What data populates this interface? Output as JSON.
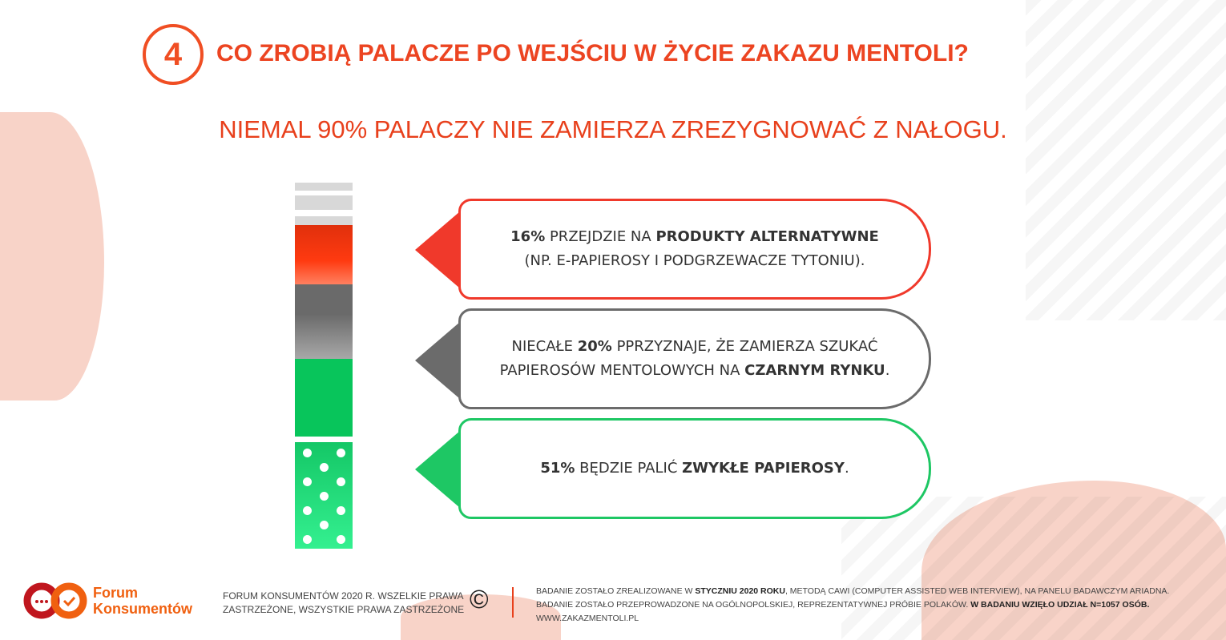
{
  "header": {
    "number": "4",
    "title": "CO ZROBIĄ PALACZE PO WEJŚCIU W ŻYCIE ZAKAZU MENTOLI?",
    "subtitle": "NIEMAL 90% PALACZY NIE ZAMIERZA ZREZYGNOWAĆ Z NAŁOGU."
  },
  "colors": {
    "accent": "#ec4421",
    "alternative": "#f0392b",
    "black_market": "#6b6b6b",
    "regular": "#1ec764"
  },
  "items": [
    {
      "b1": "16%",
      "t1": " PRZEJDZIE NA ",
      "b2": "PRODUKTY ALTERNATYWNE",
      "t2": "(NP. E-PAPIEROSY I PODGRZEWACZE TYTONIU).",
      "percent": 16
    },
    {
      "t0": "NIECAŁE ",
      "b1": "20%",
      "t1": " PPRZYZNAJE, ŻE ZAMIERZA SZUKAĆ",
      "t2": "PAPIEROSÓW MENTOLOWYCH NA ",
      "b2": "CZARNYM RYNKU",
      "t3": ".",
      "percent": 20
    },
    {
      "b1": "51%",
      "t1": " BĘDZIE PALIĆ ",
      "b2": "ZWYKŁE PAPIEROSY",
      "t3": ".",
      "percent": 51
    }
  ],
  "footer": {
    "logo_line1": "Forum",
    "logo_line2": "Konsumentów",
    "copyright_line1": "FORUM KONSUMENTÓW 2020 R. WSZELKIE PRAWA",
    "copyright_line2": "ZASTRZEŻONE, WSZYSTKIE PRAWA ZASTRZEŻONE",
    "copyright_symbol": "©",
    "n1a": "BADANIE ZOSTAŁO ZREALIZOWANE W ",
    "n1b": "STYCZNIU 2020 ROKU",
    "n1c": ", METODĄ CAWI (COMPUTER ASSISTED WEB INTERVIEW), NA PANELU BADAWCZYM ARIADNA.",
    "n2a": "BADANIE ZOSTAŁO PRZEPROWADZONE NA OGÓLNOPOLSKIEJ,  REPREZENTATYWNEJ PRÓBIE POLAKÓW. ",
    "n2b": "W BADANIU WZIĘŁO UDZIAŁ N=1057 OSÓB.",
    "url": "WWW.ZAKAZMENTOLI.PL"
  }
}
